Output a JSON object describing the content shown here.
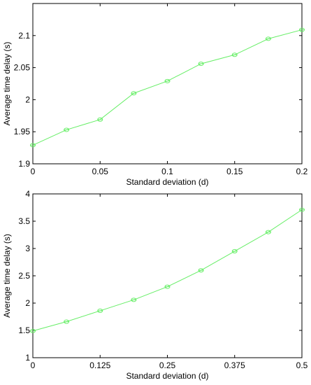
{
  "chart_data": [
    {
      "type": "line",
      "title": "",
      "xlabel": "Standard deviation (d)",
      "ylabel": "Average time delay (s)",
      "xlim": [
        0,
        0.2
      ],
      "ylim": [
        1.9,
        2.15
      ],
      "xticks": [
        0,
        0.05,
        0.1,
        0.15,
        0.2
      ],
      "xtick_labels": [
        "0",
        "0.05",
        "0.1",
        "0.15",
        "0.2"
      ],
      "yticks": [
        1.9,
        1.95,
        2.0,
        2.05,
        2.1
      ],
      "ytick_labels": [
        "1.9",
        "1.95",
        "2",
        "2.05",
        "2.1"
      ],
      "grid": false,
      "series": [
        {
          "color": "#66ee66",
          "marker": "circle",
          "x": [
            0,
            0.025,
            0.05,
            0.075,
            0.1,
            0.125,
            0.15,
            0.175,
            0.2
          ],
          "y": [
            1.929,
            1.953,
            1.969,
            2.01,
            2.029,
            2.056,
            2.07,
            2.095,
            2.109
          ]
        }
      ]
    },
    {
      "type": "line",
      "title": "",
      "xlabel": "Standard deviation (d)",
      "ylabel": "Average time delay (s)",
      "xlim": [
        0,
        0.5
      ],
      "ylim": [
        1,
        4
      ],
      "xticks": [
        0,
        0.125,
        0.25,
        0.375,
        0.5
      ],
      "xtick_labels": [
        "0",
        "0.125",
        "0.25",
        "0.375",
        "0.5"
      ],
      "yticks": [
        1,
        1.5,
        2,
        2.5,
        3,
        3.5,
        4
      ],
      "ytick_labels": [
        "1",
        "1.5",
        "2",
        "2.5",
        "3",
        "3.5",
        "4"
      ],
      "grid": false,
      "series": [
        {
          "color": "#66ee66",
          "marker": "circle",
          "x": [
            0,
            0.0625,
            0.125,
            0.1875,
            0.25,
            0.3125,
            0.375,
            0.4375,
            0.5
          ],
          "y": [
            1.49,
            1.66,
            1.86,
            2.06,
            2.3,
            2.6,
            2.95,
            3.3,
            3.71
          ]
        }
      ]
    }
  ]
}
